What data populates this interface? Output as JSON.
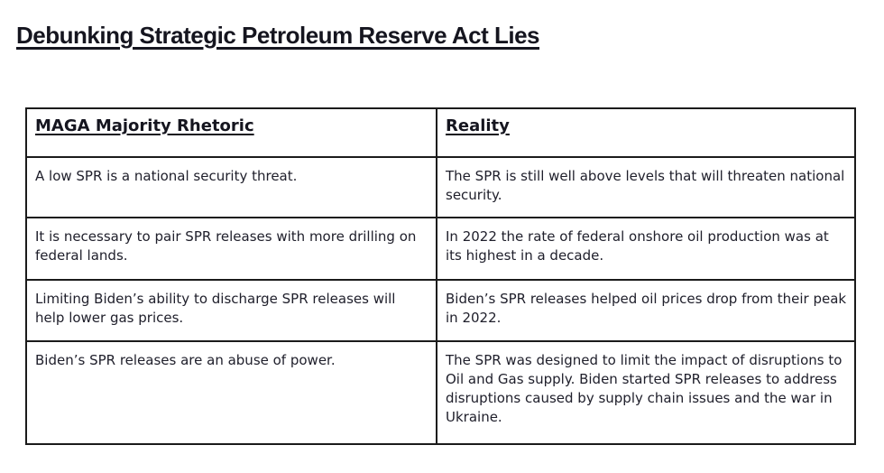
{
  "page": {
    "title": "Debunking Strategic Petroleum Reserve Act Lies"
  },
  "table": {
    "columns": [
      "MAGA Majority Rhetoric",
      "Reality"
    ],
    "rows": [
      {
        "rhetoric": "A low SPR is a national security threat.",
        "reality": "The SPR is still well above levels that will threaten national security."
      },
      {
        "rhetoric": "It is necessary to pair SPR releases with more drilling on federal lands.",
        "reality": "In 2022 the rate of federal onshore oil production was at its highest in a decade."
      },
      {
        "rhetoric": "Limiting Biden’s ability to discharge SPR releases will help lower gas prices.",
        "reality": "Biden’s SPR releases helped oil prices drop from their peak in 2022."
      },
      {
        "rhetoric": "Biden’s SPR releases are an abuse of power.",
        "reality": "The SPR was designed to limit the impact of disruptions to Oil and Gas supply. Biden started SPR releases to address disruptions caused by supply chain issues and the war in Ukraine."
      }
    ]
  },
  "colors": {
    "text": "#20202c",
    "heading": "#15151f",
    "border": "#1b1b1b",
    "background": "#ffffff"
  }
}
